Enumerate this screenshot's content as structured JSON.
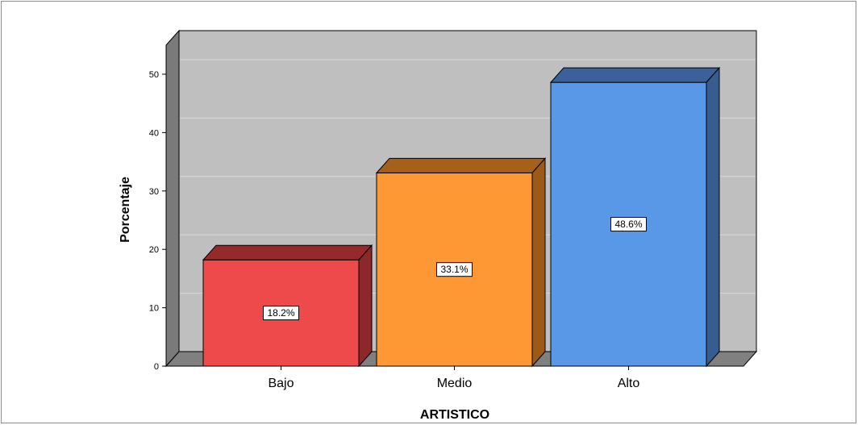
{
  "chart_data": {
    "type": "bar",
    "categories": [
      "Bajo",
      "Medio",
      "Alto"
    ],
    "values": [
      18.2,
      33.1,
      48.6
    ],
    "data_labels": [
      "18.2%",
      "33.1%",
      "48.6%"
    ],
    "xlabel": "ARTISTICO",
    "ylabel": "Porcentaje",
    "ylim": [
      0,
      55
    ],
    "yticks": [
      0,
      10,
      20,
      30,
      40,
      50
    ],
    "grid": true,
    "style": "3d",
    "colors": {
      "bars": [
        "#ee4a4c",
        "#fe9835",
        "#5898e6"
      ],
      "bar_tops": [
        "#962a2b",
        "#a7601a",
        "#3a6199"
      ],
      "bar_sides": [
        "#8c2829",
        "#9c5a18",
        "#375c90"
      ],
      "wall": "#bfbfbf",
      "floor": "#808080",
      "side_wall": "#7a7a7a",
      "gridline": "#d9d9d9"
    }
  }
}
